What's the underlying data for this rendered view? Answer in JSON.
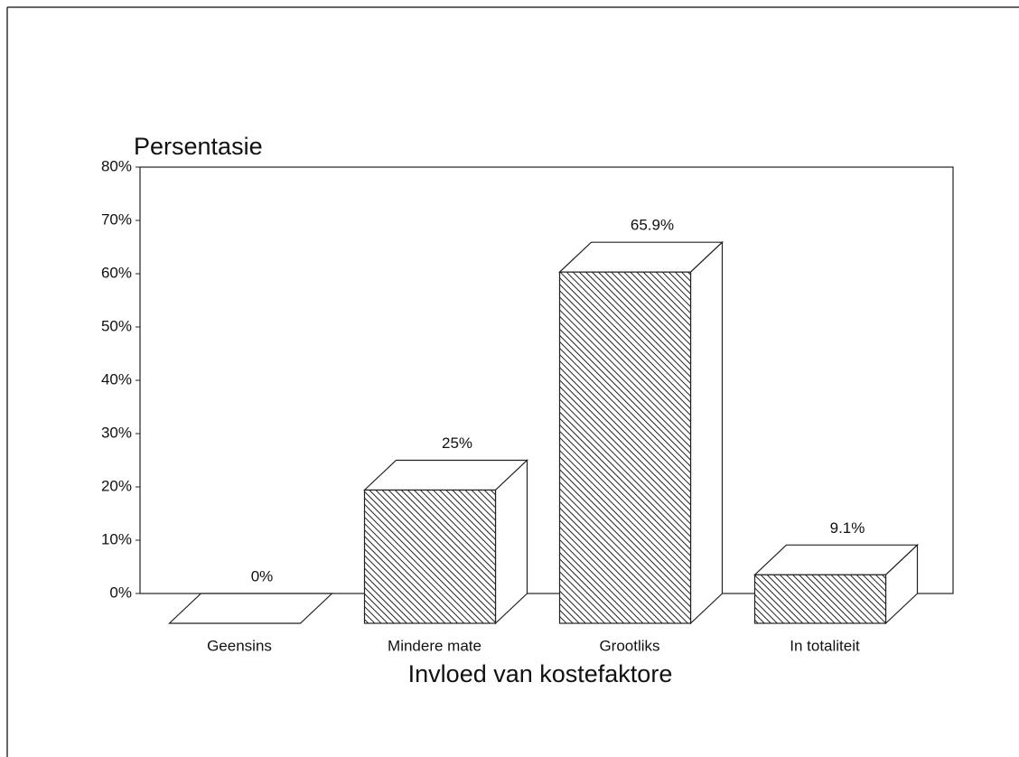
{
  "chart_data": {
    "type": "bar3d",
    "y_label": "Persentasie",
    "x_label": "Invloed van kostefaktore",
    "categories": [
      "Geensins",
      "Mindere mate",
      "Grootliks",
      "In totaliteit"
    ],
    "values": [
      0,
      25,
      65.9,
      9.1
    ],
    "value_labels": [
      "0%",
      "25%",
      "65.9%",
      "9.1%"
    ],
    "color": "#222222",
    "ylim": [
      0,
      80
    ],
    "yticks": [
      {
        "value": 0,
        "label": "0%"
      },
      {
        "value": 10,
        "label": "10%"
      },
      {
        "value": 20,
        "label": "20%"
      },
      {
        "value": 30,
        "label": "30%"
      },
      {
        "value": 40,
        "label": "40%"
      },
      {
        "value": 50,
        "label": "50%"
      },
      {
        "value": 60,
        "label": "60%"
      },
      {
        "value": 70,
        "label": "70%"
      },
      {
        "value": 80,
        "label": "80%"
      }
    ]
  }
}
